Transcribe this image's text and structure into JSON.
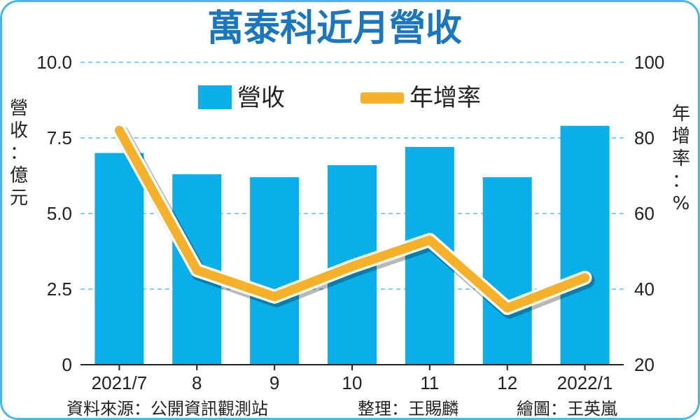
{
  "colors": {
    "bar": "#0aaee8",
    "line": "#f5b12b",
    "title": "#1b76bd",
    "grid": "#56bfe8",
    "frame": "#4bb6e8",
    "text": "#222222"
  },
  "chart_data": {
    "type": "bar+line",
    "title": "萬泰科近月營收",
    "categories": [
      "2021/7",
      "8",
      "9",
      "10",
      "11",
      "12",
      "2022/1"
    ],
    "series": [
      {
        "name": "營收",
        "type": "bar",
        "axis": "left",
        "values": [
          7.0,
          6.3,
          6.2,
          6.6,
          7.2,
          6.2,
          7.9
        ]
      },
      {
        "name": "年增率",
        "type": "line",
        "axis": "right",
        "values": [
          82,
          45,
          38,
          46,
          53,
          35,
          43
        ]
      }
    ],
    "y_left": {
      "label": "營收：億元",
      "ylim": [
        0,
        10
      ],
      "ticks": [
        "0",
        "2.5",
        "5.0",
        "7.5",
        "10.0"
      ]
    },
    "y_right": {
      "label": "年增率：%",
      "ylim": [
        20,
        100
      ],
      "ticks": [
        "20",
        "40",
        "60",
        "80",
        "100"
      ]
    },
    "grid": true,
    "legend": "top",
    "footer": {
      "source": "資料來源：公開資訊觀測站",
      "editor": "整理：王賜麟",
      "artist": "繪圖：王英嵐"
    }
  }
}
